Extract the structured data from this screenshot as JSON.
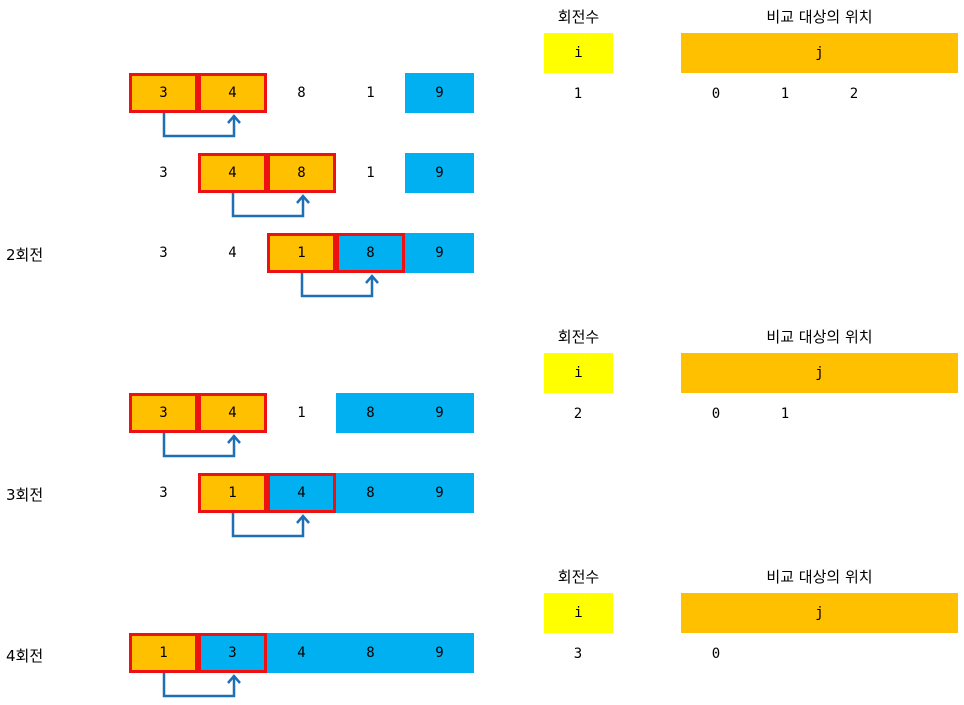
{
  "headers": {
    "round_count": "회전수",
    "compare_position": "비교 대상의 위치",
    "i": "i",
    "j": "j"
  },
  "rounds": [
    {
      "label": "2회전",
      "i": "1",
      "j": [
        "0",
        "1",
        "2"
      ],
      "rows": [
        [
          "3",
          "4",
          "8",
          "1",
          "9"
        ],
        [
          "3",
          "4",
          "8",
          "1",
          "9"
        ],
        [
          "3",
          "4",
          "1",
          "8",
          "9"
        ]
      ]
    },
    {
      "label": "3회전",
      "i": "2",
      "j": [
        "0",
        "1"
      ],
      "rows": [
        [
          "3",
          "4",
          "1",
          "8",
          "9"
        ],
        [
          "3",
          "1",
          "4",
          "8",
          "9"
        ]
      ]
    },
    {
      "label": "4회전",
      "i": "3",
      "j": [
        "0"
      ],
      "rows": [
        [
          "1",
          "3",
          "4",
          "8",
          "9"
        ]
      ]
    }
  ],
  "colors": {
    "orange": "#ffc000",
    "blue": "#00b0f0",
    "yellow": "#ffff00",
    "highlight_border": "#ee1111",
    "arrow": "#1f6fb5"
  },
  "icons": [
    "swap-arrow-icon"
  ]
}
